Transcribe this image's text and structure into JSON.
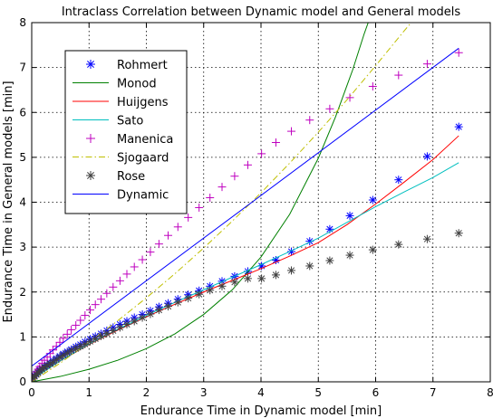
{
  "chart_data": {
    "type": "line",
    "title": "Intraclass Correlation between Dynamic model and General models",
    "xlabel": "Endurance Time in Dynamic model [min]",
    "ylabel": "Endurance Time in General models [min]",
    "xlim": [
      0,
      8
    ],
    "ylim": [
      0,
      8
    ],
    "x_ticks": [
      "0",
      "1",
      "2",
      "3",
      "4",
      "5",
      "6",
      "7",
      "8"
    ],
    "y_ticks": [
      "0",
      "1",
      "2",
      "3",
      "4",
      "5",
      "6",
      "7",
      "8"
    ],
    "grid": true,
    "legend_position": "top-left",
    "series": [
      {
        "name": "Rohmert",
        "style": "marker",
        "marker": "asterisk",
        "color": "#0000ff",
        "points": [
          [
            0.02,
            0.1
          ],
          [
            0.05,
            0.14
          ],
          [
            0.08,
            0.18
          ],
          [
            0.11,
            0.22
          ],
          [
            0.14,
            0.26
          ],
          [
            0.18,
            0.3
          ],
          [
            0.22,
            0.34
          ],
          [
            0.27,
            0.38
          ],
          [
            0.32,
            0.42
          ],
          [
            0.37,
            0.47
          ],
          [
            0.43,
            0.52
          ],
          [
            0.49,
            0.57
          ],
          [
            0.55,
            0.62
          ],
          [
            0.62,
            0.67
          ],
          [
            0.69,
            0.72
          ],
          [
            0.77,
            0.78
          ],
          [
            0.85,
            0.83
          ],
          [
            0.93,
            0.89
          ],
          [
            1.02,
            0.95
          ],
          [
            1.11,
            1.01
          ],
          [
            1.21,
            1.07
          ],
          [
            1.31,
            1.14
          ],
          [
            1.42,
            1.21
          ],
          [
            1.54,
            1.28
          ],
          [
            1.66,
            1.35
          ],
          [
            1.79,
            1.43
          ],
          [
            1.93,
            1.5
          ],
          [
            2.07,
            1.58
          ],
          [
            2.22,
            1.67
          ],
          [
            2.38,
            1.75
          ],
          [
            2.55,
            1.84
          ],
          [
            2.73,
            1.94
          ],
          [
            2.92,
            2.03
          ],
          [
            3.11,
            2.13
          ],
          [
            3.32,
            2.24
          ],
          [
            3.54,
            2.35
          ],
          [
            3.77,
            2.46
          ],
          [
            4.01,
            2.58
          ],
          [
            4.26,
            2.71
          ],
          [
            4.53,
            2.9
          ],
          [
            4.85,
            3.13
          ],
          [
            5.2,
            3.4
          ],
          [
            5.55,
            3.7
          ],
          [
            5.95,
            4.05
          ],
          [
            6.4,
            4.5
          ],
          [
            6.9,
            5.02
          ],
          [
            7.45,
            5.68
          ]
        ]
      },
      {
        "name": "Monod",
        "style": "line",
        "color": "#008000",
        "points": [
          [
            0,
            0
          ],
          [
            0.5,
            0.12
          ],
          [
            1,
            0.28
          ],
          [
            1.5,
            0.48
          ],
          [
            2,
            0.74
          ],
          [
            2.5,
            1.07
          ],
          [
            3,
            1.5
          ],
          [
            3.5,
            2.05
          ],
          [
            4,
            2.78
          ],
          [
            4.5,
            3.73
          ],
          [
            5,
            4.98
          ],
          [
            5.3,
            5.9
          ],
          [
            5.6,
            6.95
          ],
          [
            5.8,
            7.75
          ],
          [
            5.87,
            8.0
          ]
        ]
      },
      {
        "name": "Huijgens",
        "style": "line",
        "color": "#ff0000",
        "points": [
          [
            0,
            0.05
          ],
          [
            0.5,
            0.47
          ],
          [
            1,
            0.83
          ],
          [
            1.5,
            1.15
          ],
          [
            2,
            1.45
          ],
          [
            2.5,
            1.73
          ],
          [
            3,
            2.0
          ],
          [
            3.5,
            2.26
          ],
          [
            4,
            2.52
          ],
          [
            4.5,
            2.8
          ],
          [
            5,
            3.1
          ],
          [
            5.5,
            3.5
          ],
          [
            6,
            3.96
          ],
          [
            6.5,
            4.45
          ],
          [
            7,
            4.95
          ],
          [
            7.45,
            5.48
          ]
        ]
      },
      {
        "name": "Sato",
        "style": "line",
        "color": "#00bfbf",
        "points": [
          [
            0,
            0.05
          ],
          [
            0.5,
            0.47
          ],
          [
            1,
            0.84
          ],
          [
            1.5,
            1.17
          ],
          [
            2,
            1.48
          ],
          [
            2.5,
            1.77
          ],
          [
            3,
            2.05
          ],
          [
            3.5,
            2.33
          ],
          [
            4,
            2.61
          ],
          [
            4.5,
            2.9
          ],
          [
            5,
            3.2
          ],
          [
            5.5,
            3.55
          ],
          [
            6,
            3.9
          ],
          [
            6.5,
            4.23
          ],
          [
            7,
            4.55
          ],
          [
            7.45,
            4.88
          ]
        ]
      },
      {
        "name": "Manenica",
        "style": "marker",
        "marker": "plus",
        "color": "#bf00bf",
        "points": [
          [
            0.02,
            0.1
          ],
          [
            0.05,
            0.16
          ],
          [
            0.08,
            0.22
          ],
          [
            0.11,
            0.28
          ],
          [
            0.14,
            0.34
          ],
          [
            0.18,
            0.41
          ],
          [
            0.22,
            0.48
          ],
          [
            0.27,
            0.55
          ],
          [
            0.32,
            0.63
          ],
          [
            0.37,
            0.71
          ],
          [
            0.43,
            0.79
          ],
          [
            0.49,
            0.88
          ],
          [
            0.55,
            0.97
          ],
          [
            0.62,
            1.06
          ],
          [
            0.69,
            1.16
          ],
          [
            0.77,
            1.26
          ],
          [
            0.85,
            1.37
          ],
          [
            0.93,
            1.48
          ],
          [
            1.02,
            1.6
          ],
          [
            1.11,
            1.72
          ],
          [
            1.21,
            1.84
          ],
          [
            1.31,
            1.97
          ],
          [
            1.42,
            2.11
          ],
          [
            1.54,
            2.25
          ],
          [
            1.66,
            2.4
          ],
          [
            1.79,
            2.56
          ],
          [
            1.93,
            2.72
          ],
          [
            2.07,
            2.89
          ],
          [
            2.22,
            3.07
          ],
          [
            2.38,
            3.26
          ],
          [
            2.55,
            3.45
          ],
          [
            2.73,
            3.66
          ],
          [
            2.92,
            3.88
          ],
          [
            3.11,
            4.1
          ],
          [
            3.32,
            4.34
          ],
          [
            3.54,
            4.58
          ],
          [
            3.77,
            4.83
          ],
          [
            4.01,
            5.08
          ],
          [
            4.26,
            5.33
          ],
          [
            4.53,
            5.58
          ],
          [
            4.85,
            5.83
          ],
          [
            5.2,
            6.08
          ],
          [
            5.55,
            6.33
          ],
          [
            5.95,
            6.58
          ],
          [
            6.4,
            6.83
          ],
          [
            6.9,
            7.08
          ],
          [
            7.45,
            7.33
          ]
        ]
      },
      {
        "name": "Sjogaard",
        "style": "line",
        "dash": "dash-dot",
        "color": "#bfbf00",
        "points": [
          [
            0,
            0
          ],
          [
            0.5,
            0.42
          ],
          [
            1,
            0.88
          ],
          [
            1.5,
            1.36
          ],
          [
            2,
            1.87
          ],
          [
            2.5,
            2.41
          ],
          [
            3,
            2.98
          ],
          [
            3.5,
            3.58
          ],
          [
            4,
            4.21
          ],
          [
            4.5,
            4.87
          ],
          [
            5,
            5.56
          ],
          [
            5.5,
            6.28
          ],
          [
            6,
            7.04
          ],
          [
            6.5,
            7.82
          ],
          [
            6.62,
            8.0
          ]
        ]
      },
      {
        "name": "Rose",
        "style": "marker",
        "marker": "asterisk",
        "color": "#404040",
        "points": [
          [
            0.02,
            0.08
          ],
          [
            0.05,
            0.12
          ],
          [
            0.08,
            0.16
          ],
          [
            0.11,
            0.2
          ],
          [
            0.14,
            0.24
          ],
          [
            0.18,
            0.28
          ],
          [
            0.22,
            0.32
          ],
          [
            0.27,
            0.36
          ],
          [
            0.32,
            0.4
          ],
          [
            0.37,
            0.44
          ],
          [
            0.43,
            0.49
          ],
          [
            0.49,
            0.54
          ],
          [
            0.55,
            0.59
          ],
          [
            0.62,
            0.64
          ],
          [
            0.69,
            0.69
          ],
          [
            0.77,
            0.74
          ],
          [
            0.85,
            0.79
          ],
          [
            0.93,
            0.84
          ],
          [
            1.02,
            0.9
          ],
          [
            1.11,
            0.96
          ],
          [
            1.21,
            1.02
          ],
          [
            1.31,
            1.08
          ],
          [
            1.42,
            1.14
          ],
          [
            1.54,
            1.21
          ],
          [
            1.66,
            1.28
          ],
          [
            1.79,
            1.35
          ],
          [
            1.93,
            1.43
          ],
          [
            2.07,
            1.51
          ],
          [
            2.22,
            1.6
          ],
          [
            2.38,
            1.68
          ],
          [
            2.55,
            1.77
          ],
          [
            2.73,
            1.86
          ],
          [
            2.92,
            1.95
          ],
          [
            3.11,
            2.04
          ],
          [
            3.32,
            2.13
          ],
          [
            3.54,
            2.22
          ],
          [
            3.77,
            2.3
          ],
          [
            4.01,
            2.3
          ],
          [
            4.26,
            2.38
          ],
          [
            4.53,
            2.48
          ],
          [
            4.85,
            2.58
          ],
          [
            5.2,
            2.7
          ],
          [
            5.55,
            2.82
          ],
          [
            5.95,
            2.94
          ],
          [
            6.4,
            3.06
          ],
          [
            6.9,
            3.18
          ],
          [
            7.45,
            3.31
          ]
        ]
      },
      {
        "name": "Dynamic",
        "style": "line",
        "color": "#0000ff",
        "points": [
          [
            0,
            0.35
          ],
          [
            7.45,
            7.43
          ]
        ]
      }
    ]
  }
}
